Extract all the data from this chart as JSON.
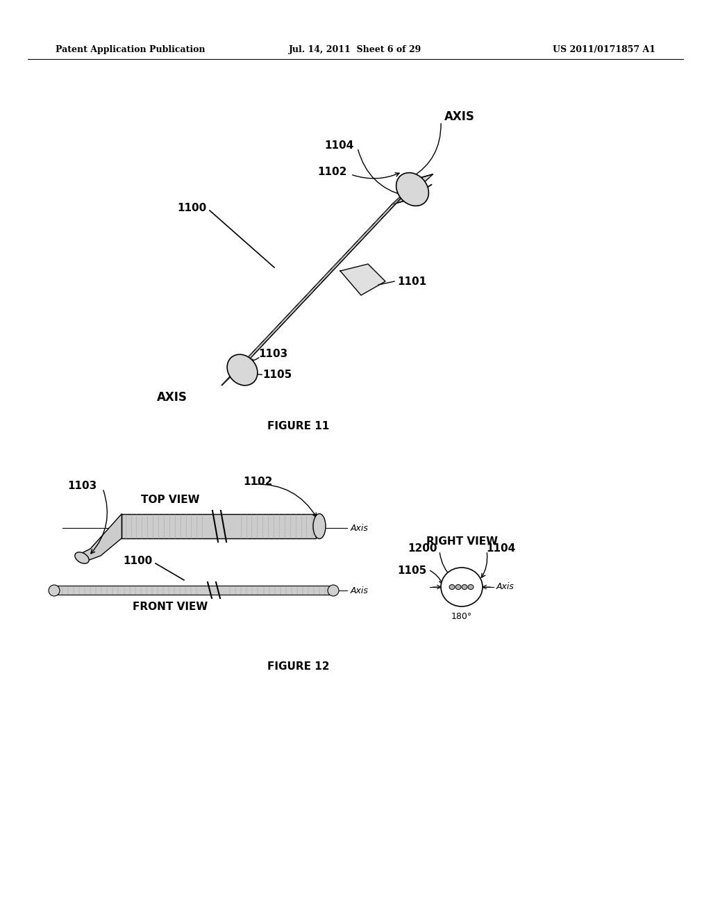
{
  "bg_color": "#ffffff",
  "header_left": "Patent Application Publication",
  "header_mid": "Jul. 14, 2011  Sheet 6 of 29",
  "header_right": "US 2011/0171857 A1",
  "fig11_caption": "FIGURE 11",
  "fig12_caption": "FIGURE 12"
}
